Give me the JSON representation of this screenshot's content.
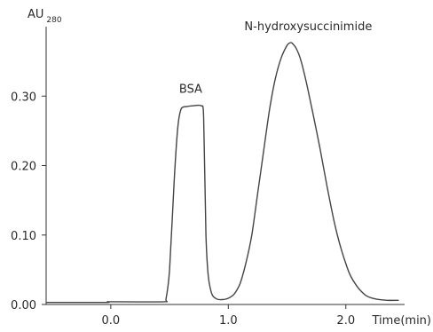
{
  "chart_data": {
    "type": "line",
    "ylabel": "AU",
    "ylabel_sub": "280",
    "xlabel": "Time(min)",
    "xlim": [
      -0.55,
      2.5
    ],
    "ylim": [
      0.0,
      0.4
    ],
    "x_ticks": [
      0.0,
      1.0,
      2.0
    ],
    "x_tick_labels": [
      "0.0",
      "1.0",
      "2.0"
    ],
    "y_ticks": [
      0.0,
      0.1,
      0.2,
      0.3
    ],
    "y_tick_labels": [
      "0.00",
      "0.10",
      "0.20",
      "0.30"
    ],
    "grid": false,
    "annotations": [
      {
        "text": "BSA",
        "x": 0.68,
        "y": 0.305
      },
      {
        "text": "N-hydroxysuccinimide",
        "x": 1.68,
        "y": 0.395
      }
    ],
    "series": [
      {
        "x": [
          -0.55,
          -0.05,
          -0.02,
          0.0,
          0.45,
          0.47,
          0.5,
          0.54,
          0.57,
          0.6,
          0.65,
          0.7,
          0.77,
          0.79,
          0.81,
          0.83,
          0.86,
          0.9,
          0.95,
          1.0,
          1.05,
          1.1,
          1.15,
          1.2,
          1.25,
          1.3,
          1.35,
          1.4,
          1.45,
          1.5,
          1.53,
          1.55,
          1.58,
          1.62,
          1.67,
          1.72,
          1.78,
          1.84,
          1.9,
          1.96,
          2.03,
          2.1,
          2.17,
          2.25,
          2.35,
          2.45
        ],
        "y": [
          0.003,
          0.003,
          0.004,
          0.004,
          0.004,
          0.008,
          0.05,
          0.18,
          0.255,
          0.282,
          0.285,
          0.286,
          0.286,
          0.27,
          0.1,
          0.04,
          0.015,
          0.008,
          0.007,
          0.009,
          0.015,
          0.03,
          0.06,
          0.1,
          0.16,
          0.22,
          0.28,
          0.325,
          0.355,
          0.373,
          0.377,
          0.375,
          0.368,
          0.35,
          0.315,
          0.275,
          0.225,
          0.17,
          0.12,
          0.08,
          0.045,
          0.025,
          0.013,
          0.008,
          0.006,
          0.006
        ]
      }
    ]
  }
}
